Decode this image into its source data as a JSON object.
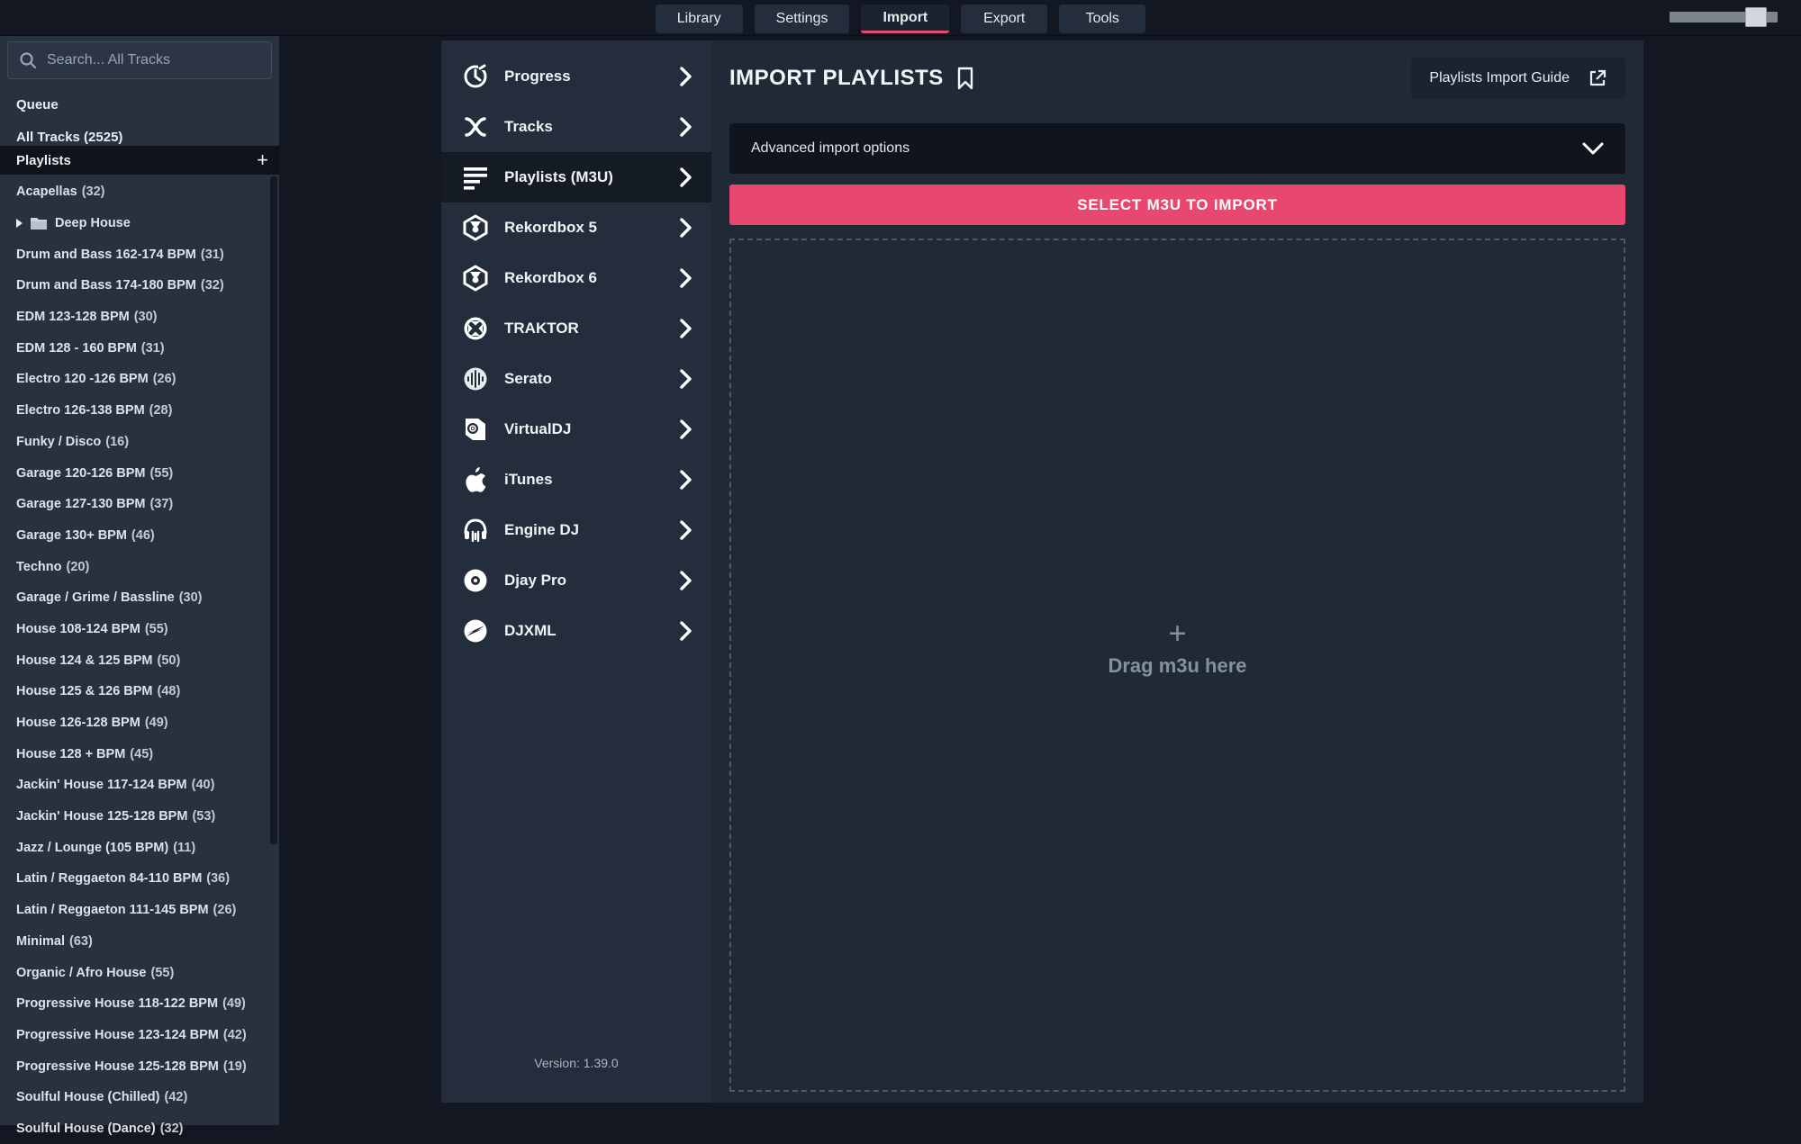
{
  "topbar": {
    "tabs": [
      {
        "label": "Library",
        "active": false
      },
      {
        "label": "Settings",
        "active": false
      },
      {
        "label": "Import",
        "active": true
      },
      {
        "label": "Export",
        "active": false
      },
      {
        "label": "Tools",
        "active": false
      }
    ],
    "zoom_slider": {
      "value_percent": 90
    }
  },
  "sidebar": {
    "search": {
      "placeholder": "Search... All Tracks",
      "icon": "search-icon"
    },
    "queue_label": "Queue",
    "all_tracks_label": "All Tracks (2525)",
    "playlists_header": "Playlists",
    "add_playlist_label": "+",
    "playlists": [
      {
        "name": "Acapellas",
        "count": 32
      },
      {
        "name": "Deep House",
        "folder": true
      },
      {
        "name": "Drum and Bass 162-174 BPM",
        "count": 31
      },
      {
        "name": "Drum and Bass 174-180 BPM",
        "count": 32
      },
      {
        "name": "EDM 123-128 BPM",
        "count": 30
      },
      {
        "name": "EDM 128 - 160 BPM",
        "count": 31
      },
      {
        "name": "Electro 120 -126 BPM",
        "count": 26
      },
      {
        "name": "Electro 126-138 BPM",
        "count": 28
      },
      {
        "name": "Funky / Disco",
        "count": 16
      },
      {
        "name": "Garage 120-126 BPM",
        "count": 55
      },
      {
        "name": "Garage 127-130 BPM",
        "count": 37
      },
      {
        "name": "Garage 130+ BPM",
        "count": 46
      },
      {
        "name": "Techno",
        "count": 20
      },
      {
        "name": "Garage / Grime / Bassline",
        "count": 30
      },
      {
        "name": "House 108-124 BPM",
        "count": 55
      },
      {
        "name": "House 124 & 125 BPM",
        "count": 50
      },
      {
        "name": "House 125 & 126 BPM",
        "count": 48
      },
      {
        "name": "House 126-128 BPM",
        "count": 49
      },
      {
        "name": "House 128 + BPM",
        "count": 45
      },
      {
        "name": "Jackin' House 117-124 BPM",
        "count": 40
      },
      {
        "name": "Jackin' House 125-128 BPM",
        "count": 53
      },
      {
        "name": "Jazz / Lounge (105 BPM)",
        "count": 11
      },
      {
        "name": "Latin / Reggaeton 84-110 BPM",
        "count": 36
      },
      {
        "name": "Latin / Reggaeton 111-145 BPM",
        "count": 26
      },
      {
        "name": "Minimal",
        "count": 63
      },
      {
        "name": "Organic / Afro House",
        "count": 55
      },
      {
        "name": "Progressive House 118-122 BPM",
        "count": 49
      },
      {
        "name": "Progressive House 123-124 BPM",
        "count": 42
      },
      {
        "name": "Progressive House 125-128 BPM",
        "count": 19
      },
      {
        "name": "Soulful House (Chilled)",
        "count": 42
      },
      {
        "name": "Soulful House (Dance)",
        "count": 32
      }
    ]
  },
  "import_menu": {
    "items": [
      {
        "label": "Progress",
        "icon": "clock-icon",
        "selected": false
      },
      {
        "label": "Tracks",
        "icon": "tracks-icon",
        "selected": false
      },
      {
        "label": "Playlists (M3U)",
        "icon": "playlist-list-icon",
        "selected": true
      },
      {
        "label": "Rekordbox 5",
        "icon": "rekordbox-icon",
        "selected": false
      },
      {
        "label": "Rekordbox 6",
        "icon": "rekordbox-icon",
        "selected": false
      },
      {
        "label": "TRAKTOR",
        "icon": "traktor-icon",
        "selected": false
      },
      {
        "label": "Serato",
        "icon": "serato-icon",
        "selected": false
      },
      {
        "label": "VirtualDJ",
        "icon": "virtualdj-icon",
        "selected": false
      },
      {
        "label": "iTunes",
        "icon": "apple-icon",
        "selected": false
      },
      {
        "label": "Engine DJ",
        "icon": "headphones-icon",
        "selected": false
      },
      {
        "label": "Djay Pro",
        "icon": "vinyl-icon",
        "selected": false
      },
      {
        "label": "DJXML",
        "icon": "djxml-icon",
        "selected": false
      }
    ],
    "version": "Version: 1.39.0"
  },
  "main": {
    "title": "IMPORT PLAYLISTS",
    "title_icon": "bookmark-icon",
    "guide_button_label": "Playlists Import Guide",
    "guide_button_icon": "external-link-icon",
    "advanced_options_label": "Advanced import options",
    "select_button_label": "SELECT M3U TO IMPORT",
    "drop_zone": {
      "plus": "+",
      "label": "Drag m3u here"
    }
  },
  "colors": {
    "accent_pink": "#e8476f",
    "page_bg": "#121721",
    "sidebar_bg": "#28323f",
    "menu_bg": "#232d3b",
    "panel_bg": "#202a37",
    "dark_bar_bg": "#0f141d"
  }
}
